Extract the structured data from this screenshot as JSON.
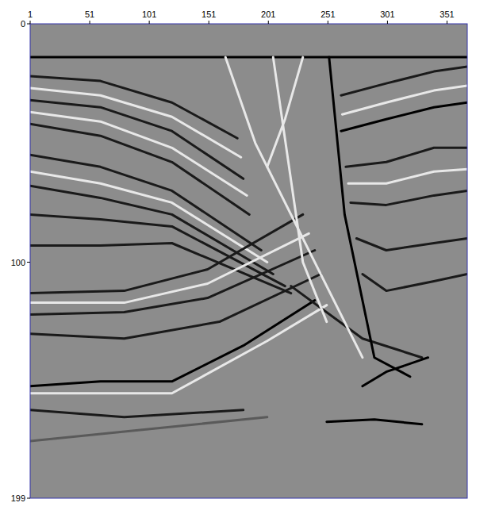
{
  "chart_data": {
    "type": "seismic",
    "xlim": [
      1,
      368
    ],
    "ylim": [
      0,
      199
    ],
    "xticks": [
      1,
      51,
      101,
      151,
      201,
      251,
      301,
      351
    ],
    "yticks": [
      0,
      100,
      199
    ],
    "horizons": [
      {
        "color": "#000000",
        "x": [
          1,
          368
        ],
        "y": [
          14,
          14
        ]
      },
      {
        "color": "#1a1a1a",
        "x": [
          1,
          60,
          120,
          175
        ],
        "y": [
          22,
          24,
          33,
          48
        ]
      },
      {
        "color": "#e8e8e8",
        "x": [
          1,
          60,
          120,
          178
        ],
        "y": [
          27,
          30,
          39,
          56
        ]
      },
      {
        "color": "#1a1a1a",
        "x": [
          1,
          60,
          120,
          180
        ],
        "y": [
          32,
          35,
          45,
          65
        ]
      },
      {
        "color": "#e8e8e8",
        "x": [
          1,
          60,
          120,
          183
        ],
        "y": [
          37,
          41,
          52,
          72
        ]
      },
      {
        "color": "#1a1a1a",
        "x": [
          1,
          60,
          120,
          185
        ],
        "y": [
          42,
          47,
          58,
          80
        ]
      },
      {
        "color": "#1a1a1a",
        "x": [
          1,
          60,
          120,
          195
        ],
        "y": [
          55,
          60,
          70,
          95
        ]
      },
      {
        "color": "#e8e8e8",
        "x": [
          1,
          60,
          120,
          200
        ],
        "y": [
          62,
          67,
          75,
          100
        ]
      },
      {
        "color": "#1a1a1a",
        "x": [
          1,
          60,
          120,
          205
        ],
        "y": [
          68,
          73,
          80,
          105
        ]
      },
      {
        "color": "#1a1a1a",
        "x": [
          1,
          60,
          120,
          215
        ],
        "y": [
          80,
          82,
          85,
          110
        ]
      },
      {
        "color": "#1a1a1a",
        "x": [
          1,
          60,
          120,
          220
        ],
        "y": [
          93,
          93,
          92,
          113
        ]
      },
      {
        "color": "#1a1a1a",
        "x": [
          1,
          80,
          150,
          230
        ],
        "y": [
          113,
          112,
          103,
          80
        ]
      },
      {
        "color": "#e8e8e8",
        "x": [
          1,
          80,
          150,
          235
        ],
        "y": [
          117,
          117,
          109,
          88
        ]
      },
      {
        "color": "#1a1a1a",
        "x": [
          1,
          80,
          150,
          240
        ],
        "y": [
          122,
          121,
          115,
          95
        ]
      },
      {
        "color": "#1a1a1a",
        "x": [
          1,
          80,
          160,
          245
        ],
        "y": [
          130,
          132,
          125,
          105
        ]
      },
      {
        "color": "#000000",
        "x": [
          1,
          60,
          120,
          180,
          240
        ],
        "y": [
          152,
          150,
          150,
          135,
          116
        ]
      },
      {
        "color": "#e8e8e8",
        "x": [
          1,
          120,
          200,
          250
        ],
        "y": [
          155,
          155,
          133,
          118
        ]
      },
      {
        "color": "#1a1a1a",
        "x": [
          262,
          300,
          340,
          368
        ],
        "y": [
          30,
          25,
          20,
          18
        ]
      },
      {
        "color": "#e8e8e8",
        "x": [
          263,
          300,
          340,
          368
        ],
        "y": [
          38,
          33,
          28,
          26
        ]
      },
      {
        "color": "#000000",
        "x": [
          262,
          300,
          340,
          368
        ],
        "y": [
          45,
          40,
          35,
          33
        ]
      },
      {
        "color": "#1a1a1a",
        "x": [
          266,
          300,
          340,
          368
        ],
        "y": [
          60,
          58,
          52,
          52
        ]
      },
      {
        "color": "#e8e8e8",
        "x": [
          268,
          300,
          340,
          368
        ],
        "y": [
          67,
          67,
          62,
          61
        ]
      },
      {
        "color": "#1a1a1a",
        "x": [
          270,
          300,
          340,
          368
        ],
        "y": [
          75,
          76,
          72,
          70
        ]
      },
      {
        "color": "#1a1a1a",
        "x": [
          275,
          300,
          340,
          368
        ],
        "y": [
          90,
          95,
          92,
          90
        ]
      },
      {
        "color": "#1a1a1a",
        "x": [
          280,
          300,
          340,
          368
        ],
        "y": [
          105,
          112,
          108,
          105
        ]
      },
      {
        "color": "#1a1a1a",
        "x": [
          220,
          280,
          330
        ],
        "y": [
          110,
          132,
          140
        ]
      },
      {
        "color": "#000000",
        "x": [
          280,
          300,
          335
        ],
        "y": [
          152,
          146,
          140
        ]
      },
      {
        "color": "#000000",
        "x": [
          250,
          290,
          330
        ],
        "y": [
          167,
          166,
          168
        ]
      },
      {
        "color": "#1a1a1a",
        "x": [
          1,
          80,
          180
        ],
        "y": [
          162,
          165,
          162
        ]
      },
      {
        "color": "#5a5a5a",
        "x": [
          1,
          100,
          200
        ],
        "y": [
          175,
          170,
          165
        ]
      },
      {
        "color": "#e8e8e8",
        "x": [
          165,
          190,
          250,
          280
        ],
        "y": [
          14,
          50,
          110,
          140
        ]
      },
      {
        "color": "#e8e8e8",
        "x": [
          205,
          230,
          250
        ],
        "y": [
          14,
          100,
          125
        ]
      },
      {
        "color": "#000000",
        "x": [
          252,
          265,
          290,
          320
        ],
        "y": [
          14,
          80,
          140,
          148
        ]
      },
      {
        "color": "#e8e8e8",
        "x": [
          230,
          215,
          200
        ],
        "y": [
          14,
          40,
          60
        ]
      }
    ]
  }
}
